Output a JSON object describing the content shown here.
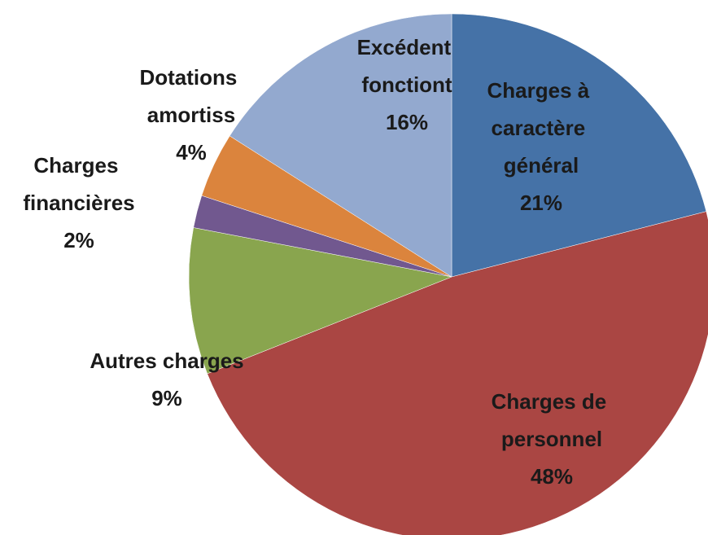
{
  "chart_data": {
    "type": "pie",
    "categories": [
      "Charges à caractère général",
      "Charges de personnel",
      "Autres charges",
      "Charges financières",
      "Dotations amortiss",
      "Excédent fonctiont"
    ],
    "values": [
      21,
      48,
      9,
      2,
      4,
      16
    ],
    "value_labels": [
      "21%",
      "48%",
      "9%",
      "2%",
      "4%",
      "16%"
    ],
    "colors": [
      "#4572a7",
      "#aa4643",
      "#89a54e",
      "#71588f",
      "#db843d",
      "#93a9cf"
    ]
  }
}
